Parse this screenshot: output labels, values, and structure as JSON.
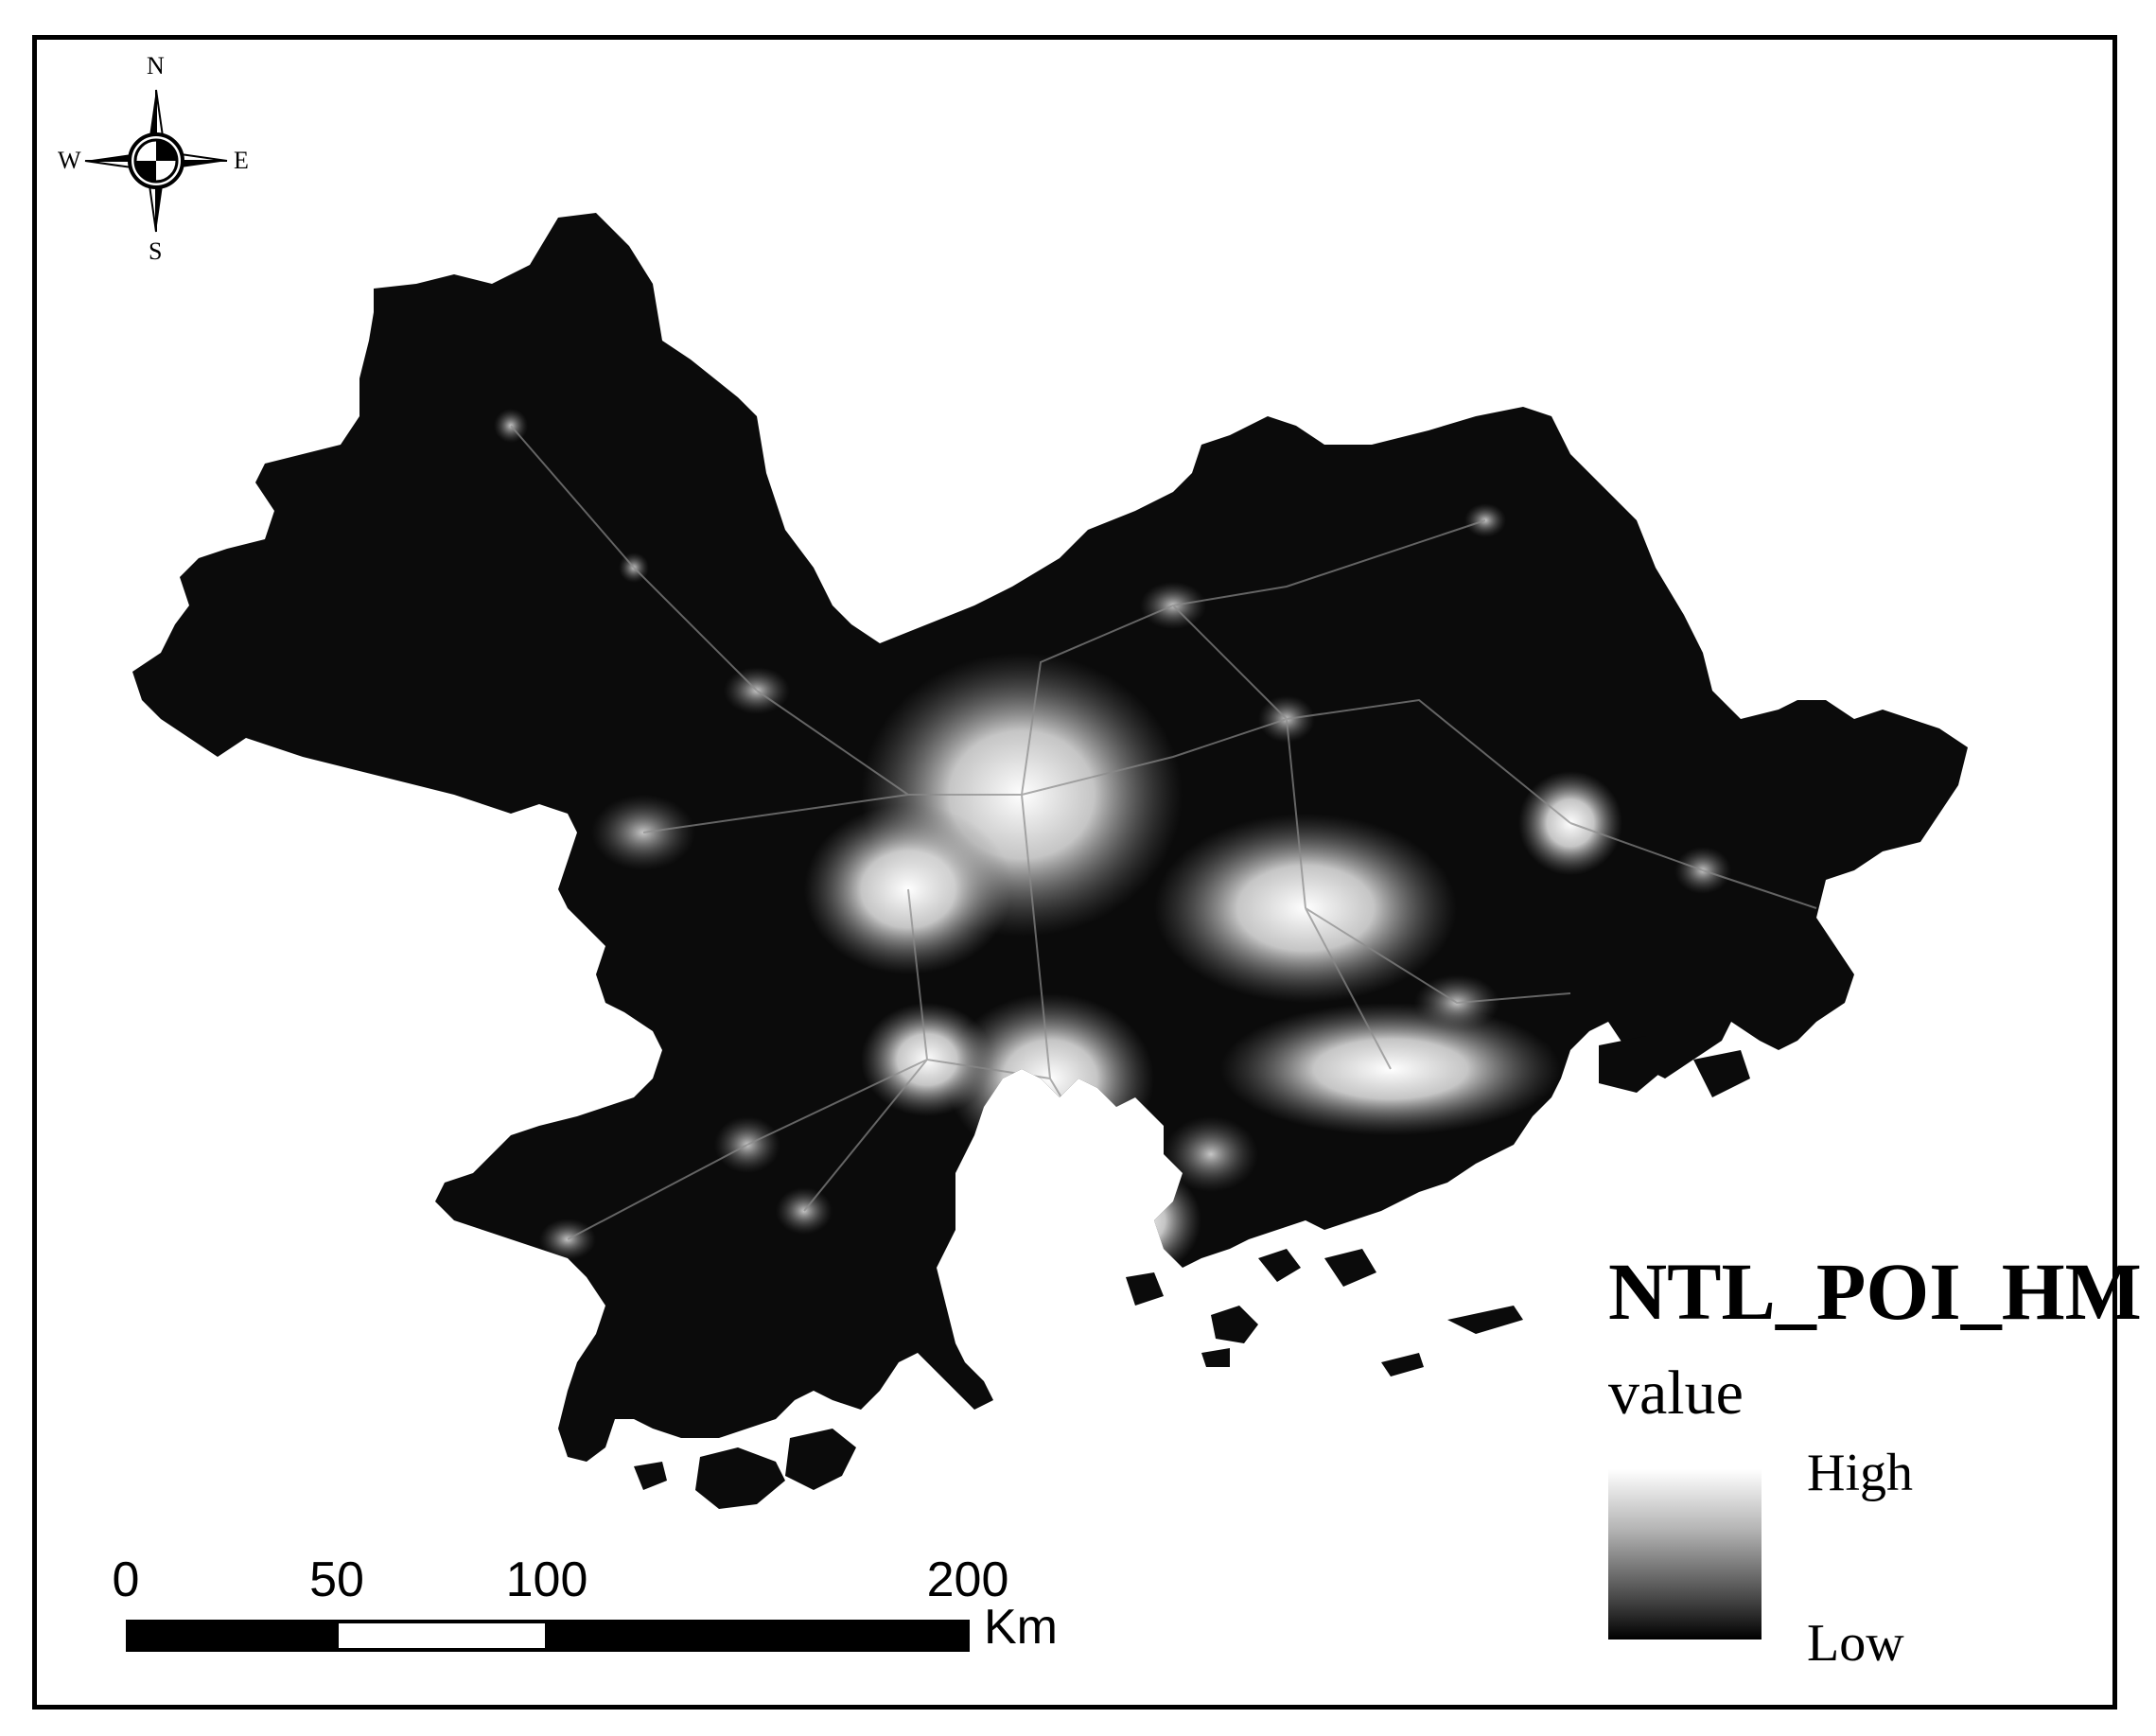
{
  "map": {
    "legend": {
      "title": "NTL_POI_HM",
      "subtitle": "value",
      "high_label": "High",
      "low_label": "Low",
      "ramp_colors": [
        "#ffffff",
        "#000000"
      ]
    },
    "scale_bar": {
      "ticks": [
        "0",
        "50",
        "100",
        "200"
      ],
      "unit": "Km"
    },
    "north_arrow": {
      "n": "N",
      "s": "S",
      "e": "E",
      "w": "W"
    },
    "colors": {
      "land": "#0b0b0b",
      "background": "#ffffff",
      "lights": "#ffffff"
    }
  }
}
